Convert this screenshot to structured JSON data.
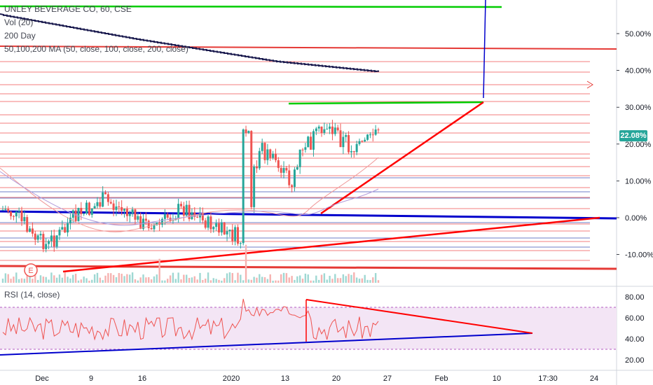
{
  "legend": {
    "title": "UNLEY BEVERAGE CO, 60, CSE",
    "vol": "Vol (20)",
    "ma200": "200 Day",
    "ma_multi": "50,100,200 MA (50, close, 100, close, 200, close)"
  },
  "rsi_label": "RSI (14, close)",
  "price_axis": [
    "50.00%",
    "40.00%",
    "30.00%",
    "20.00%",
    "10.00%",
    "0.00%",
    "-10.00%"
  ],
  "price_axis_values": [
    50,
    40,
    30,
    20,
    10,
    0,
    -10
  ],
  "current_value": "22.08%",
  "rsi_axis": [
    "80.00",
    "60.00",
    "40.00",
    "20.00"
  ],
  "rsi_axis_values": [
    80,
    60,
    40,
    20
  ],
  "time_axis": [
    "Dec",
    "9",
    "16",
    "2020",
    "13",
    "20",
    "27",
    "Feb",
    "10",
    "17:30",
    "24"
  ],
  "event_marker": "E",
  "colors": {
    "up": "#26a69a",
    "down": "#ef5350",
    "red_line": "#ff0000",
    "blue_line": "#0000cc",
    "green_line": "#00cc00",
    "rsi_band": "#f3e5f5",
    "ma_line": "#1a1a4e"
  },
  "chart_data": {
    "type": "line",
    "title": "UNLEY BEVERAGE CO, 60, CSE",
    "ylabel": "%",
    "ylim": [
      -14,
      58
    ],
    "current_value": 22.08,
    "rsi": {
      "period": 14,
      "ylim": [
        15,
        85
      ],
      "overbought": 70,
      "oversold": 30
    }
  }
}
